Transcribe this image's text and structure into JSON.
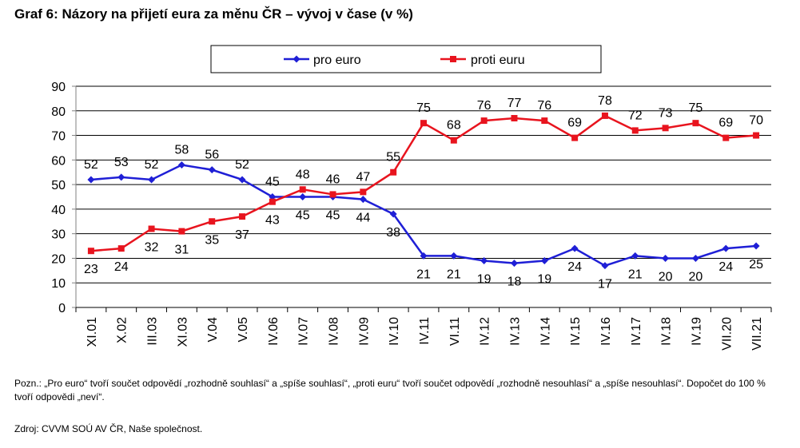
{
  "chart_data": {
    "type": "line",
    "title": "Graf 6: Názory na přijetí eura za měnu ČR – vývoj v čase (v %)",
    "categories": [
      "XI.01",
      "X.02",
      "III.03",
      "XI.03",
      "V.04",
      "V.05",
      "IV.06",
      "IV.07",
      "IV.08",
      "IV.09",
      "IV.10",
      "IV.11",
      "VI.11",
      "IV.12",
      "IV.13",
      "IV.14",
      "IV.15",
      "IV.16",
      "IV.17",
      "IV.18",
      "IV.19",
      "VII.20",
      "VII.21"
    ],
    "series": [
      {
        "name": "pro euro",
        "color": "#1f1fd6",
        "marker": "diamond",
        "values": [
          52,
          53,
          52,
          58,
          56,
          52,
          45,
          45,
          45,
          44,
          38,
          21,
          21,
          19,
          18,
          19,
          24,
          17,
          21,
          20,
          20,
          24,
          25
        ]
      },
      {
        "name": "proti euru",
        "color": "#e8141e",
        "marker": "square",
        "values": [
          23,
          24,
          32,
          31,
          35,
          37,
          43,
          48,
          46,
          47,
          55,
          75,
          68,
          76,
          77,
          76,
          69,
          78,
          72,
          73,
          75,
          69,
          70
        ]
      }
    ],
    "ylim": [
      0,
      90
    ],
    "yticks": [
      0,
      10,
      20,
      30,
      40,
      50,
      60,
      70,
      80,
      90
    ],
    "grid": true,
    "legend_position": "top",
    "xlabel": "",
    "ylabel": ""
  },
  "note": "Pozn.: „Pro euro“ tvoří součet odpovědí „rozhodně souhlasí“ a „spíše souhlasí“, „proti euru“ tvoří součet odpovědí „rozhodně nesouhlasí“ a „spíše nesouhlasí“. Dopočet do 100 % tvoří odpovědi „neví“.",
  "source": "Zdroj: CVVM SOÚ AV ČR, Naše společnost."
}
